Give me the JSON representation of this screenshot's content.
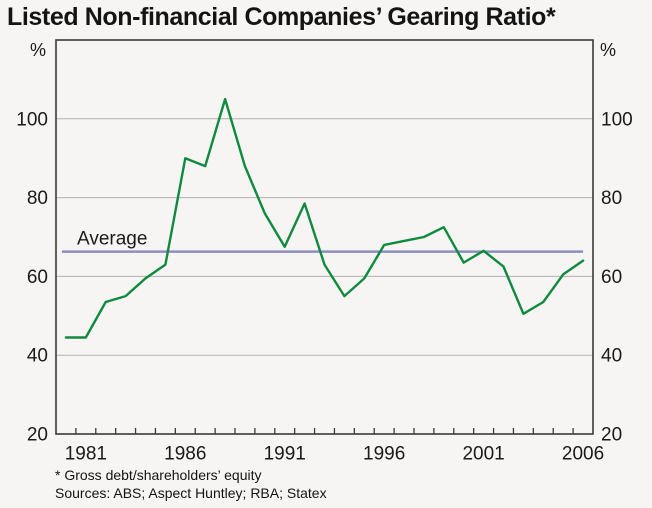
{
  "title": "Listed Non-financial Companies’ Gearing Ratio*",
  "footnotes": {
    "note": "* Gross debt/shareholders’ equity",
    "sources": "Sources: ABS; Aspect Huntley; RBA; Statex"
  },
  "colors": {
    "series_green": "#108a3e",
    "average_purple": "#8d8dc0",
    "gridline": "#b3b1ae",
    "axis": "#3a3a3a",
    "text": "#1a1a1a",
    "background": "#f6f5f3"
  },
  "chart_data": {
    "type": "line",
    "title": "Listed Non-financial Companies’ Gearing Ratio*",
    "unit_label_left": "%",
    "unit_label_right": "%",
    "ylim": [
      20,
      120
    ],
    "yticks": [
      20,
      40,
      60,
      80,
      100
    ],
    "grid": true,
    "legend_position": "none",
    "xlim_years": [
      1980,
      2007
    ],
    "xtick_labels": [
      "1981",
      "1986",
      "1991",
      "1996",
      "2001",
      "2006"
    ],
    "point_convention": "annual values plotted at mid-year; minor ticks at each year start",
    "series": [
      {
        "name": "Listed non-financial companies’ gearing ratio",
        "color": "#108a3e",
        "x_years": [
          1980,
          1981,
          1982,
          1983,
          1984,
          1985,
          1986,
          1987,
          1988,
          1989,
          1990,
          1991,
          1992,
          1993,
          1994,
          1995,
          1996,
          1997,
          1998,
          1999,
          2000,
          2001,
          2002,
          2003,
          2004,
          2005,
          2006
        ],
        "values": [
          44.5,
          44.5,
          53.5,
          55,
          59.5,
          63,
          90,
          88,
          105,
          88,
          76,
          67.5,
          78.5,
          63,
          55,
          59.5,
          68,
          69,
          70,
          72.5,
          63.5,
          66.5,
          62.5,
          50.5,
          53.5,
          60.5,
          64
        ]
      }
    ],
    "average_line": {
      "label": "Average",
      "value": 66.3,
      "color": "#8d8dc0"
    }
  }
}
